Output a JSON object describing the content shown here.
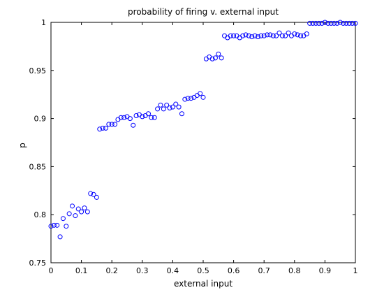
{
  "chart_data": {
    "type": "scatter",
    "title": "probability of firing v. external input",
    "xlabel": "external input",
    "ylabel": "p",
    "xlim": [
      0,
      1
    ],
    "ylim": [
      0.75,
      1
    ],
    "xticks": [
      "0",
      "0.1",
      "0.2",
      "0.3",
      "0.4",
      "0.5",
      "0.6",
      "0.7",
      "0.8",
      "0.9",
      "1"
    ],
    "yticks": [
      "0.75",
      "0.8",
      "0.85",
      "0.9",
      "0.95",
      "1"
    ],
    "grid": false,
    "marker": "open-circle",
    "marker_color": "#0000ff",
    "x": [
      0.0,
      0.01,
      0.02,
      0.03,
      0.04,
      0.05,
      0.06,
      0.07,
      0.08,
      0.09,
      0.1,
      0.11,
      0.12,
      0.13,
      0.14,
      0.15,
      0.16,
      0.17,
      0.18,
      0.19,
      0.2,
      0.21,
      0.22,
      0.23,
      0.24,
      0.25,
      0.26,
      0.27,
      0.28,
      0.29,
      0.3,
      0.31,
      0.32,
      0.33,
      0.34,
      0.35,
      0.36,
      0.37,
      0.38,
      0.39,
      0.4,
      0.41,
      0.42,
      0.43,
      0.44,
      0.45,
      0.46,
      0.47,
      0.48,
      0.49,
      0.5,
      0.51,
      0.52,
      0.53,
      0.54,
      0.55,
      0.56,
      0.57,
      0.58,
      0.59,
      0.6,
      0.61,
      0.62,
      0.63,
      0.64,
      0.65,
      0.66,
      0.67,
      0.68,
      0.69,
      0.7,
      0.71,
      0.72,
      0.73,
      0.74,
      0.75,
      0.76,
      0.77,
      0.78,
      0.79,
      0.8,
      0.81,
      0.82,
      0.83,
      0.84,
      0.85,
      0.86,
      0.87,
      0.88,
      0.89,
      0.9,
      0.91,
      0.92,
      0.93,
      0.94,
      0.95,
      0.96,
      0.97,
      0.98,
      0.99,
      1.0
    ],
    "y": [
      0.788,
      0.789,
      0.789,
      0.777,
      0.796,
      0.788,
      0.801,
      0.809,
      0.799,
      0.806,
      0.803,
      0.807,
      0.803,
      0.822,
      0.821,
      0.818,
      0.889,
      0.89,
      0.89,
      0.894,
      0.894,
      0.894,
      0.899,
      0.901,
      0.901,
      0.902,
      0.9,
      0.893,
      0.903,
      0.904,
      0.902,
      0.903,
      0.905,
      0.901,
      0.901,
      0.91,
      0.914,
      0.91,
      0.914,
      0.911,
      0.912,
      0.915,
      0.912,
      0.905,
      0.92,
      0.921,
      0.921,
      0.922,
      0.924,
      0.926,
      0.922,
      0.962,
      0.964,
      0.962,
      0.963,
      0.967,
      0.963,
      0.986,
      0.984,
      0.986,
      0.986,
      0.986,
      0.984,
      0.986,
      0.987,
      0.986,
      0.985,
      0.986,
      0.985,
      0.986,
      0.986,
      0.987,
      0.987,
      0.986,
      0.986,
      0.989,
      0.986,
      0.986,
      0.989,
      0.986,
      0.988,
      0.987,
      0.986,
      0.986,
      0.988,
      0.999,
      0.999,
      0.999,
      0.999,
      0.999,
      1.0,
      0.999,
      0.999,
      0.999,
      0.999,
      1.0,
      0.999,
      0.999,
      0.999,
      0.999,
      0.999
    ]
  }
}
